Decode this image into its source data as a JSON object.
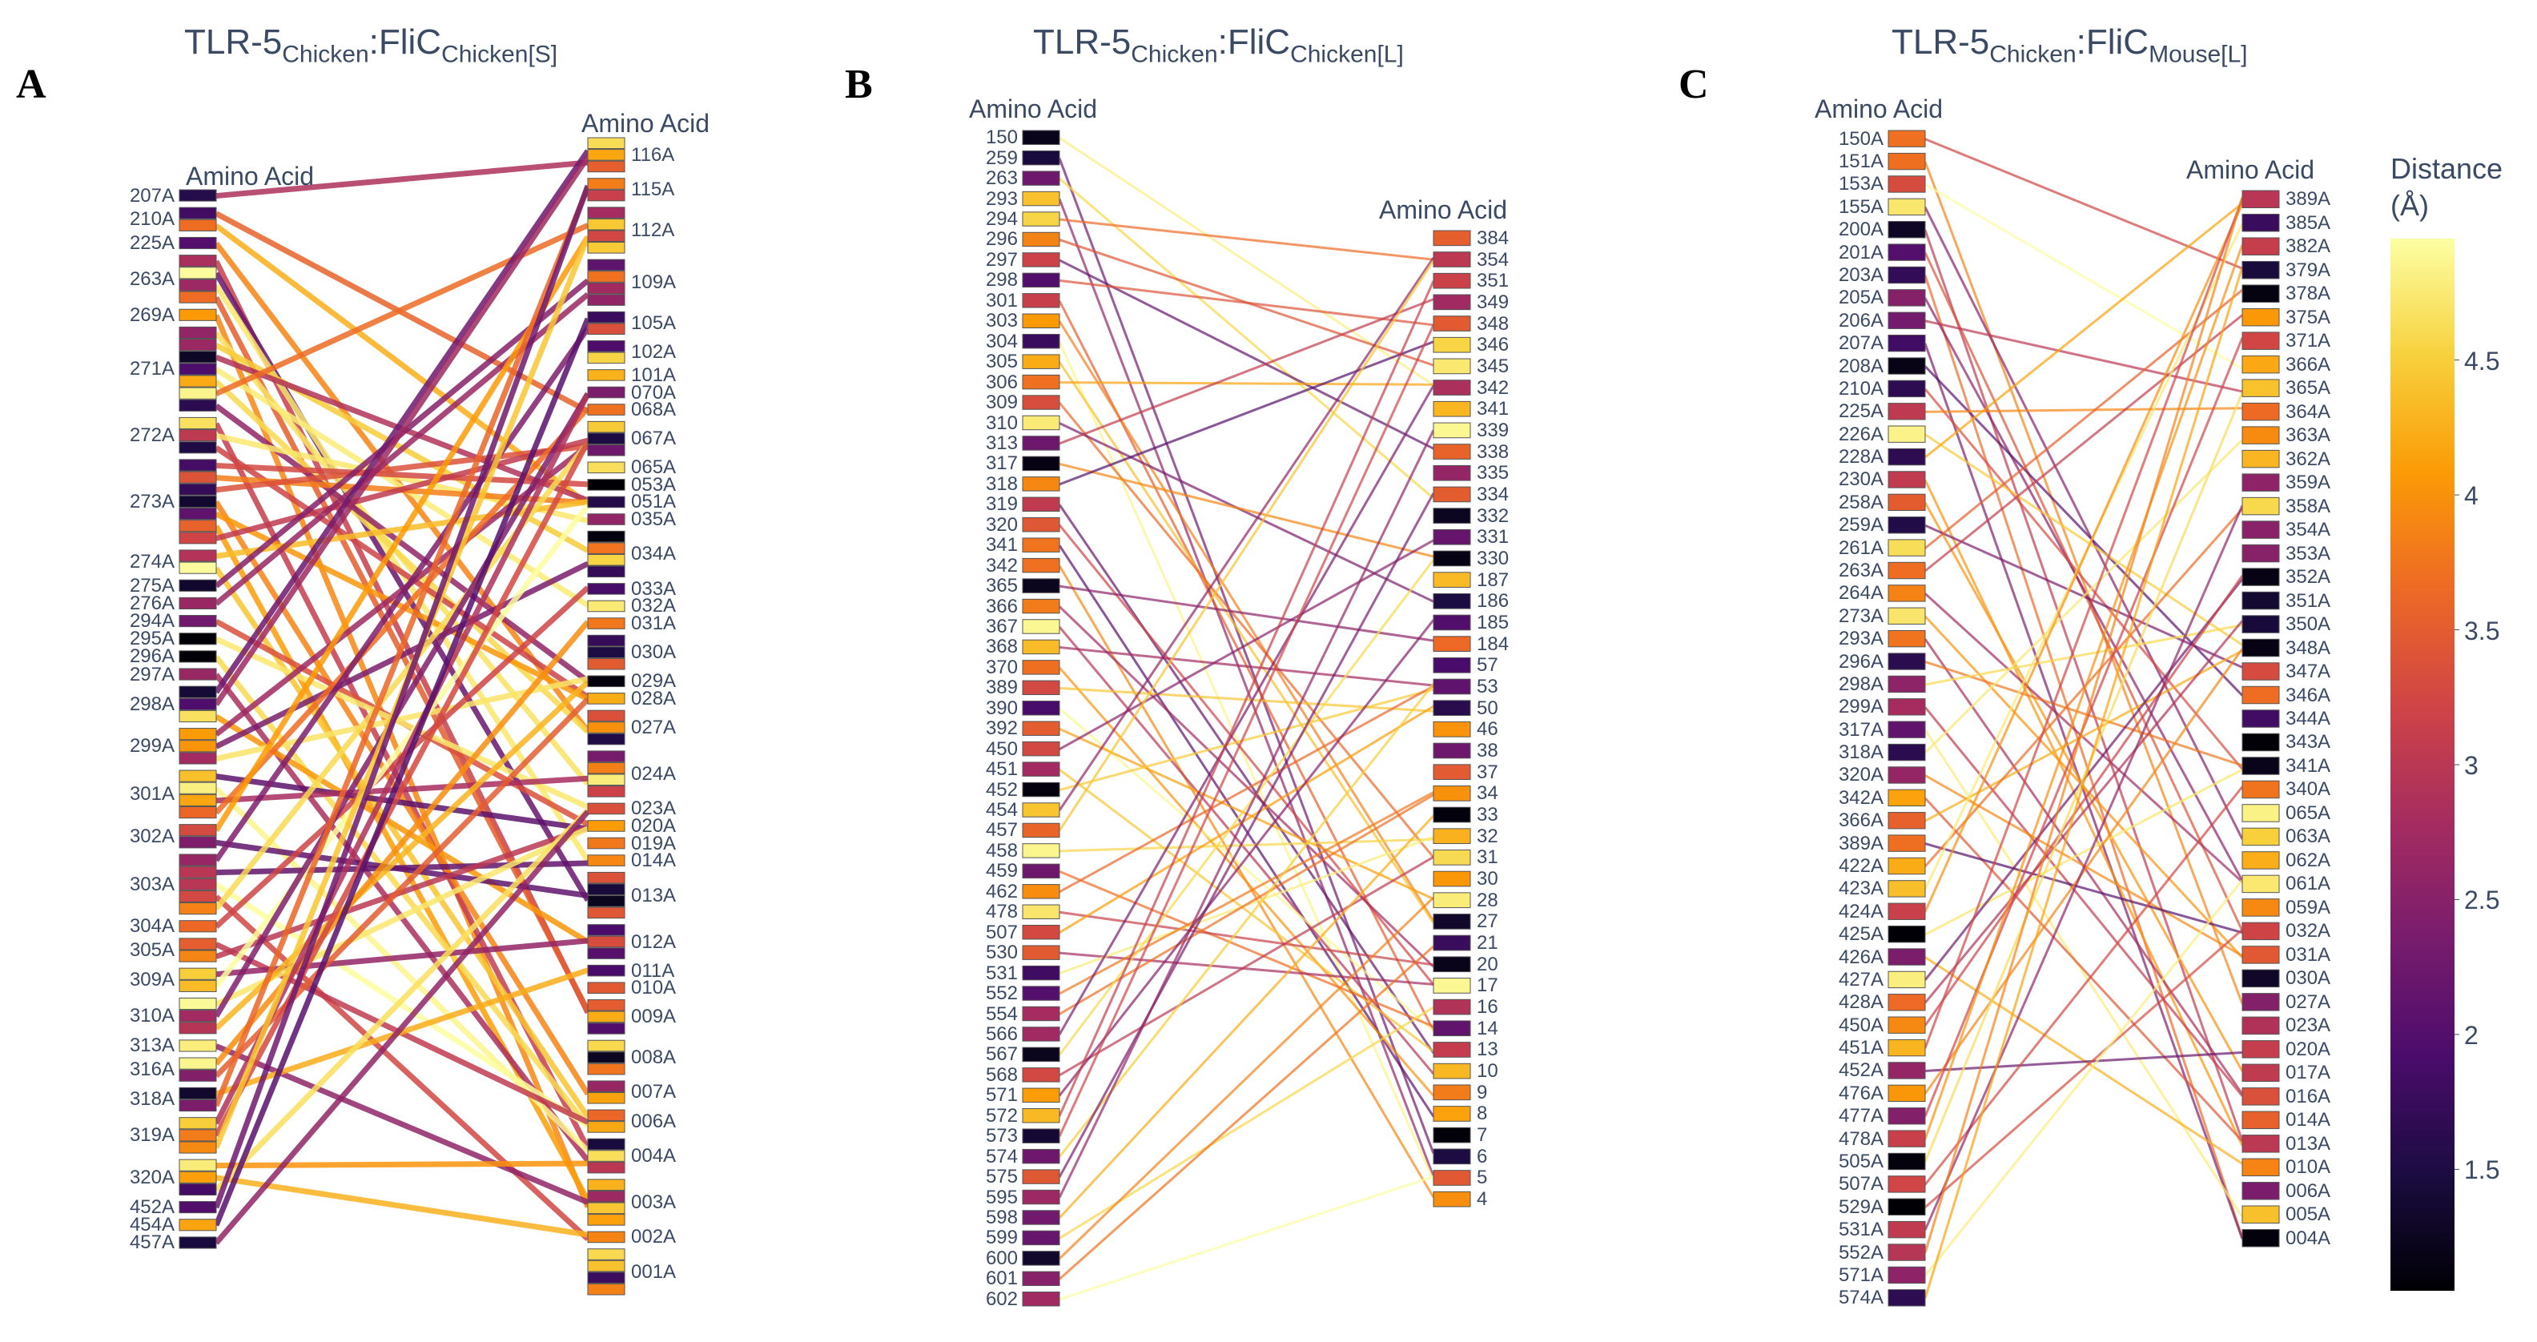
{
  "panels": [
    {
      "label": "A",
      "title": {
        "base": "TLR-5",
        "sub1": "Chicken",
        "sep": ":",
        "base2": "FliC",
        "sub2": "Chicken[S]"
      },
      "left_axis_title": "Amino Acid",
      "right_axis_title": "Amino Acid",
      "left": [
        [
          "207A",
          1
        ],
        [
          "210A",
          2
        ],
        [
          "225A",
          1
        ],
        [
          "263A",
          4
        ],
        [
          "269A",
          1
        ],
        [
          "271A",
          7
        ],
        [
          "272A",
          3
        ],
        [
          "273A",
          7
        ],
        [
          "274A",
          2
        ],
        [
          "275A",
          1
        ],
        [
          "276A",
          1
        ],
        [
          "294A",
          1
        ],
        [
          "295A",
          1
        ],
        [
          "296A",
          1
        ],
        [
          "297A",
          1
        ],
        [
          "298A",
          3
        ],
        [
          "299A",
          3
        ],
        [
          "301A",
          4
        ],
        [
          "302A",
          2
        ],
        [
          "303A",
          5
        ],
        [
          "304A",
          1
        ],
        [
          "305A",
          2
        ],
        [
          "309A",
          2
        ],
        [
          "310A",
          3
        ],
        [
          "313A",
          1
        ],
        [
          "316A",
          2
        ],
        [
          "318A",
          2
        ],
        [
          "319A",
          3
        ],
        [
          "320A",
          3
        ],
        [
          "452A",
          1
        ],
        [
          "454A",
          1
        ],
        [
          "457A",
          1
        ]
      ],
      "right": [
        [
          "116A",
          3
        ],
        [
          "115A",
          2
        ],
        [
          "112A",
          4
        ],
        [
          "109A",
          4
        ],
        [
          "105A",
          2
        ],
        [
          "102A",
          2
        ],
        [
          "101A",
          1
        ],
        [
          "070A",
          1
        ],
        [
          "068A",
          1
        ],
        [
          "067A",
          3
        ],
        [
          "065A",
          1
        ],
        [
          "053A",
          1
        ],
        [
          "051A",
          1
        ],
        [
          "035A",
          1
        ],
        [
          "034A",
          4
        ],
        [
          "033A",
          1
        ],
        [
          "032A",
          1
        ],
        [
          "031A",
          1
        ],
        [
          "030A",
          3
        ],
        [
          "029A",
          1
        ],
        [
          "028A",
          1
        ],
        [
          "027A",
          3
        ],
        [
          "024A",
          4
        ],
        [
          "023A",
          1
        ],
        [
          "020A",
          1
        ],
        [
          "019A",
          1
        ],
        [
          "014A",
          1
        ],
        [
          "013A",
          4
        ],
        [
          "012A",
          3
        ],
        [
          "011A",
          1
        ],
        [
          "010A",
          1
        ],
        [
          "009A",
          3
        ],
        [
          "008A",
          3
        ],
        [
          "007A",
          2
        ],
        [
          "006A",
          2
        ],
        [
          "004A",
          3
        ],
        [
          "003A",
          4
        ],
        [
          "002A",
          1
        ],
        [
          "001A",
          4
        ]
      ]
    },
    {
      "label": "B",
      "title": {
        "base": "TLR-5",
        "sub1": "Chicken",
        "sep": ":",
        "base2": "FliC",
        "sub2": "Chicken[L]"
      },
      "left_axis_title": "Amino Acid",
      "right_axis_title": "Amino Acid",
      "left": [
        [
          "150",
          1
        ],
        [
          "259",
          1
        ],
        [
          "263",
          1
        ],
        [
          "293",
          1
        ],
        [
          "294",
          1
        ],
        [
          "296",
          1
        ],
        [
          "297",
          1
        ],
        [
          "298",
          1
        ],
        [
          "301",
          1
        ],
        [
          "303",
          1
        ],
        [
          "304",
          1
        ],
        [
          "305",
          1
        ],
        [
          "306",
          1
        ],
        [
          "309",
          1
        ],
        [
          "310",
          1
        ],
        [
          "313",
          1
        ],
        [
          "317",
          1
        ],
        [
          "318",
          1
        ],
        [
          "319",
          1
        ],
        [
          "320",
          1
        ],
        [
          "341",
          1
        ],
        [
          "342",
          1
        ],
        [
          "365",
          1
        ],
        [
          "366",
          1
        ],
        [
          "367",
          1
        ],
        [
          "368",
          1
        ],
        [
          "370",
          1
        ],
        [
          "389",
          1
        ],
        [
          "390",
          1
        ],
        [
          "392",
          1
        ],
        [
          "450",
          1
        ],
        [
          "451",
          1
        ],
        [
          "452",
          1
        ],
        [
          "454",
          1
        ],
        [
          "457",
          1
        ],
        [
          "458",
          1
        ],
        [
          "459",
          1
        ],
        [
          "462",
          1
        ],
        [
          "478",
          1
        ],
        [
          "507",
          1
        ],
        [
          "530",
          1
        ],
        [
          "531",
          1
        ],
        [
          "552",
          1
        ],
        [
          "554",
          1
        ],
        [
          "566",
          1
        ],
        [
          "567",
          1
        ],
        [
          "568",
          1
        ],
        [
          "571",
          1
        ],
        [
          "572",
          1
        ],
        [
          "573",
          1
        ],
        [
          "574",
          1
        ],
        [
          "575",
          1
        ],
        [
          "595",
          1
        ],
        [
          "598",
          1
        ],
        [
          "599",
          1
        ],
        [
          "600",
          1
        ],
        [
          "601",
          1
        ],
        [
          "602",
          1
        ]
      ],
      "right": [
        [
          "384",
          1
        ],
        [
          "354",
          1
        ],
        [
          "351",
          1
        ],
        [
          "349",
          1
        ],
        [
          "348",
          1
        ],
        [
          "346",
          1
        ],
        [
          "345",
          1
        ],
        [
          "342",
          1
        ],
        [
          "341",
          1
        ],
        [
          "339",
          1
        ],
        [
          "338",
          1
        ],
        [
          "335",
          1
        ],
        [
          "334",
          1
        ],
        [
          "332",
          1
        ],
        [
          "331",
          1
        ],
        [
          "330",
          1
        ],
        [
          "187",
          1
        ],
        [
          "186",
          1
        ],
        [
          "185",
          1
        ],
        [
          "184",
          1
        ],
        [
          "57",
          1
        ],
        [
          "53",
          1
        ],
        [
          "50",
          1
        ],
        [
          "46",
          1
        ],
        [
          "38",
          1
        ],
        [
          "37",
          1
        ],
        [
          "34",
          1
        ],
        [
          "33",
          1
        ],
        [
          "32",
          1
        ],
        [
          "31",
          1
        ],
        [
          "30",
          1
        ],
        [
          "28",
          1
        ],
        [
          "27",
          1
        ],
        [
          "21",
          1
        ],
        [
          "20",
          1
        ],
        [
          "17",
          1
        ],
        [
          "16",
          1
        ],
        [
          "14",
          1
        ],
        [
          "13",
          1
        ],
        [
          "10",
          1
        ],
        [
          "9",
          1
        ],
        [
          "8",
          1
        ],
        [
          "7",
          1
        ],
        [
          "6",
          1
        ],
        [
          "5",
          1
        ],
        [
          "4",
          1
        ]
      ]
    },
    {
      "label": "C",
      "title": {
        "base": "TLR-5",
        "sub1": "Chicken",
        "sep": ":",
        "base2": "FliC",
        "sub2": "Mouse[L]"
      },
      "left_axis_title": "Amino Acid",
      "right_axis_title": "Amino Acid",
      "left": [
        [
          "150A",
          1
        ],
        [
          "151A",
          1
        ],
        [
          "153A",
          1
        ],
        [
          "155A",
          1
        ],
        [
          "200A",
          1
        ],
        [
          "201A",
          1
        ],
        [
          "203A",
          1
        ],
        [
          "205A",
          1
        ],
        [
          "206A",
          1
        ],
        [
          "207A",
          1
        ],
        [
          "208A",
          1
        ],
        [
          "210A",
          1
        ],
        [
          "225A",
          1
        ],
        [
          "226A",
          1
        ],
        [
          "228A",
          1
        ],
        [
          "230A",
          1
        ],
        [
          "258A",
          1
        ],
        [
          "259A",
          1
        ],
        [
          "261A",
          1
        ],
        [
          "263A",
          1
        ],
        [
          "264A",
          1
        ],
        [
          "273A",
          1
        ],
        [
          "293A",
          1
        ],
        [
          "296A",
          1
        ],
        [
          "298A",
          1
        ],
        [
          "299A",
          1
        ],
        [
          "317A",
          1
        ],
        [
          "318A",
          1
        ],
        [
          "320A",
          1
        ],
        [
          "342A",
          1
        ],
        [
          "366A",
          1
        ],
        [
          "389A",
          1
        ],
        [
          "422A",
          1
        ],
        [
          "423A",
          1
        ],
        [
          "424A",
          1
        ],
        [
          "425A",
          1
        ],
        [
          "426A",
          1
        ],
        [
          "427A",
          1
        ],
        [
          "428A",
          1
        ],
        [
          "450A",
          1
        ],
        [
          "451A",
          1
        ],
        [
          "452A",
          1
        ],
        [
          "476A",
          1
        ],
        [
          "477A",
          1
        ],
        [
          "478A",
          1
        ],
        [
          "505A",
          1
        ],
        [
          "507A",
          1
        ],
        [
          "529A",
          1
        ],
        [
          "531A",
          1
        ],
        [
          "552A",
          1
        ],
        [
          "571A",
          1
        ],
        [
          "574A",
          1
        ]
      ],
      "right": [
        [
          "389A",
          1
        ],
        [
          "385A",
          1
        ],
        [
          "382A",
          1
        ],
        [
          "379A",
          1
        ],
        [
          "378A",
          1
        ],
        [
          "375A",
          1
        ],
        [
          "371A",
          1
        ],
        [
          "366A",
          1
        ],
        [
          "365A",
          1
        ],
        [
          "364A",
          1
        ],
        [
          "363A",
          1
        ],
        [
          "362A",
          1
        ],
        [
          "359A",
          1
        ],
        [
          "358A",
          1
        ],
        [
          "354A",
          1
        ],
        [
          "353A",
          1
        ],
        [
          "352A",
          1
        ],
        [
          "351A",
          1
        ],
        [
          "350A",
          1
        ],
        [
          "348A",
          1
        ],
        [
          "347A",
          1
        ],
        [
          "346A",
          1
        ],
        [
          "344A",
          1
        ],
        [
          "343A",
          1
        ],
        [
          "341A",
          1
        ],
        [
          "340A",
          1
        ],
        [
          "065A",
          1
        ],
        [
          "063A",
          1
        ],
        [
          "062A",
          1
        ],
        [
          "061A",
          1
        ],
        [
          "059A",
          1
        ],
        [
          "032A",
          1
        ],
        [
          "031A",
          1
        ],
        [
          "030A",
          1
        ],
        [
          "027A",
          1
        ],
        [
          "023A",
          1
        ],
        [
          "020A",
          1
        ],
        [
          "017A",
          1
        ],
        [
          "016A",
          1
        ],
        [
          "014A",
          1
        ],
        [
          "013A",
          1
        ],
        [
          "010A",
          1
        ],
        [
          "006A",
          1
        ],
        [
          "005A",
          1
        ],
        [
          "004A",
          1
        ]
      ]
    }
  ],
  "colorbar": {
    "title_line1": "Distance",
    "title_line2": "(Å)",
    "ticks": [
      "4.5",
      "4",
      "3.5",
      "3",
      "2.5",
      "2",
      "1.5"
    ],
    "range": [
      1.05,
      4.95
    ],
    "colorscale": [
      "#000004",
      "#1b0c41",
      "#4a0c6b",
      "#781c6d",
      "#a52c60",
      "#cf4446",
      "#ed6925",
      "#fb9b06",
      "#f7d13d",
      "#fcffa4"
    ]
  }
}
